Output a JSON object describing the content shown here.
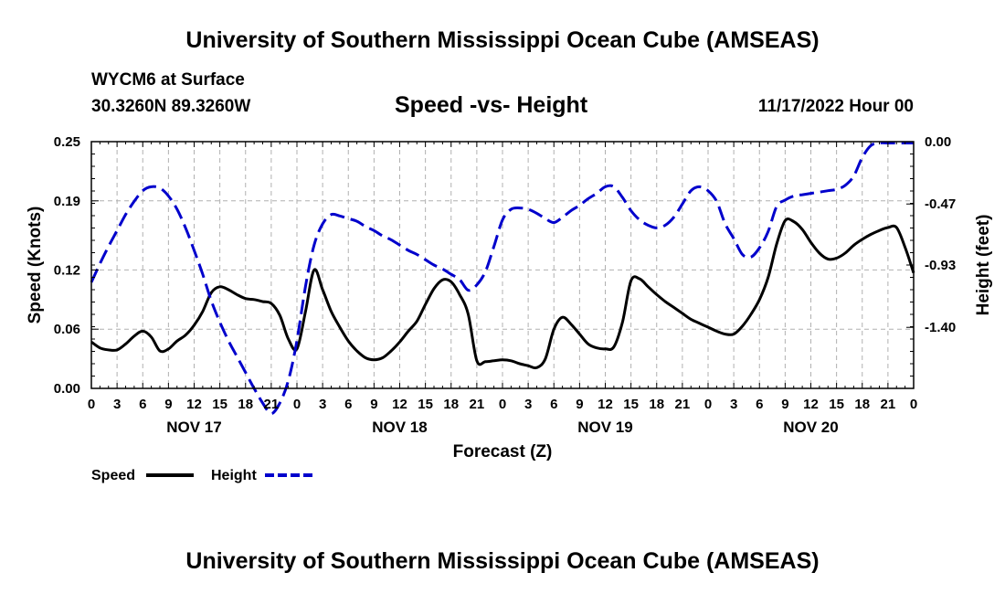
{
  "page": {
    "title": "University of Southern Mississippi Ocean Cube (AMSEAS)",
    "station": "WYCM6 at Surface",
    "coords": "30.3260N  89.3260W",
    "datetime": "11/17/2022 Hour 00",
    "footer_title": "University of Southern Mississippi Ocean Cube (AMSEAS)"
  },
  "chart_data": {
    "type": "line",
    "title": "Speed -vs- Height",
    "xlabel": "Forecast (Z)",
    "ylabel_left": "Speed (Knots)",
    "ylabel_right": "Height (feet)",
    "x_range_hours": [
      0,
      96
    ],
    "x_tick_hours": [
      0,
      3,
      6,
      9,
      12,
      15,
      18,
      21,
      24,
      27,
      30,
      33,
      36,
      39,
      42,
      45,
      48,
      51,
      54,
      57,
      60,
      63,
      66,
      69,
      72,
      75,
      78,
      81,
      84,
      87,
      90,
      93,
      96
    ],
    "x_tick_labels": [
      "0",
      "3",
      "6",
      "9",
      "12",
      "15",
      "18",
      "21",
      "0",
      "3",
      "6",
      "9",
      "12",
      "15",
      "18",
      "21",
      "0",
      "3",
      "6",
      "9",
      "12",
      "15",
      "18",
      "21",
      "0",
      "3",
      "6",
      "9",
      "12",
      "15",
      "18",
      "21",
      "0"
    ],
    "day_labels": [
      {
        "label": "NOV 17",
        "hour": 12
      },
      {
        "label": "NOV 18",
        "hour": 36
      },
      {
        "label": "NOV 19",
        "hour": 60
      },
      {
        "label": "NOV 20",
        "hour": 84
      }
    ],
    "left_axis": {
      "range": [
        0,
        0.25
      ],
      "ticks": [
        0,
        0.06,
        0.12,
        0.19,
        0.25
      ],
      "tick_labels": [
        "0.00",
        "0.06",
        "0.12",
        "0.19",
        "0.25"
      ]
    },
    "right_axis": {
      "range": [
        -1.86,
        0
      ],
      "ticks": [
        0,
        -0.47,
        -0.93,
        -1.4
      ],
      "tick_labels": [
        "0.00",
        "-0.47",
        "-0.93",
        "-1.40"
      ]
    },
    "grid": true,
    "legend": [
      "Speed",
      "Height"
    ],
    "series": [
      {
        "name": "Speed",
        "axis": "left",
        "color": "#000000",
        "dash": "solid",
        "x": [
          0,
          1,
          2,
          3,
          4,
          5,
          6,
          7,
          8,
          9,
          10,
          11,
          12,
          13,
          14,
          15,
          16,
          17,
          18,
          19,
          20,
          21,
          22,
          23,
          24,
          25,
          26,
          27,
          28,
          29,
          30,
          31,
          32,
          33,
          34,
          35,
          36,
          37,
          38,
          39,
          40,
          41,
          42,
          43,
          44,
          45,
          46,
          47,
          48,
          49,
          50,
          51,
          52,
          53,
          54,
          55,
          56,
          57,
          58,
          59,
          60,
          61,
          62,
          63,
          64,
          65,
          66,
          67,
          68,
          69,
          70,
          71,
          72,
          73,
          74,
          75,
          76,
          77,
          78,
          79,
          80,
          81,
          82,
          83,
          84,
          85,
          86,
          87,
          88,
          89,
          90,
          91,
          92,
          93,
          94,
          95,
          96
        ],
        "values": [
          0.047,
          0.041,
          0.039,
          0.039,
          0.045,
          0.053,
          0.058,
          0.052,
          0.038,
          0.04,
          0.048,
          0.054,
          0.064,
          0.078,
          0.097,
          0.103,
          0.1,
          0.095,
          0.091,
          0.09,
          0.088,
          0.086,
          0.074,
          0.05,
          0.04,
          0.078,
          0.12,
          0.1,
          0.078,
          0.062,
          0.048,
          0.038,
          0.031,
          0.029,
          0.031,
          0.038,
          0.047,
          0.058,
          0.068,
          0.085,
          0.101,
          0.11,
          0.108,
          0.095,
          0.075,
          0.028,
          0.027,
          0.028,
          0.029,
          0.028,
          0.025,
          0.023,
          0.021,
          0.03,
          0.06,
          0.072,
          0.065,
          0.055,
          0.045,
          0.041,
          0.04,
          0.042,
          0.067,
          0.109,
          0.111,
          0.103,
          0.095,
          0.088,
          0.082,
          0.076,
          0.07,
          0.066,
          0.062,
          0.058,
          0.055,
          0.055,
          0.063,
          0.075,
          0.09,
          0.112,
          0.146,
          0.17,
          0.169,
          0.161,
          0.148,
          0.137,
          0.131,
          0.132,
          0.137,
          0.145,
          0.151,
          0.156,
          0.16,
          0.163,
          0.163,
          0.143,
          0.117
        ]
      },
      {
        "name": "Height",
        "axis": "right",
        "color": "#0000cc",
        "dash": "dashed",
        "x": [
          0,
          1,
          2,
          3,
          4,
          5,
          6,
          7,
          8,
          9,
          10,
          11,
          12,
          13,
          14,
          15,
          16,
          17,
          18,
          19,
          20,
          21,
          22,
          23,
          24,
          25,
          26,
          27,
          28,
          29,
          30,
          31,
          32,
          33,
          34,
          35,
          36,
          37,
          38,
          39,
          40,
          41,
          42,
          43,
          44,
          45,
          46,
          47,
          48,
          49,
          50,
          51,
          52,
          53,
          54,
          55,
          56,
          57,
          58,
          59,
          60,
          61,
          62,
          63,
          64,
          65,
          66,
          67,
          68,
          69,
          70,
          71,
          72,
          73,
          74,
          75,
          76,
          77,
          78,
          79,
          80,
          81,
          82,
          83,
          84,
          85,
          86,
          87,
          88,
          89,
          90,
          91,
          92,
          93,
          94,
          95,
          96
        ],
        "values": [
          -1.06,
          -0.92,
          -0.79,
          -0.67,
          -0.55,
          -0.45,
          -0.37,
          -0.34,
          -0.35,
          -0.41,
          -0.51,
          -0.65,
          -0.82,
          -1.0,
          -1.2,
          -1.36,
          -1.5,
          -1.62,
          -1.74,
          -1.86,
          -1.97,
          -2.05,
          -1.97,
          -1.8,
          -1.5,
          -1.09,
          -0.78,
          -0.62,
          -0.55,
          -0.56,
          -0.58,
          -0.6,
          -0.64,
          -0.67,
          -0.71,
          -0.74,
          -0.78,
          -0.82,
          -0.85,
          -0.89,
          -0.93,
          -0.96,
          -1.0,
          -1.04,
          -1.12,
          -1.08,
          -0.98,
          -0.79,
          -0.59,
          -0.51,
          -0.5,
          -0.51,
          -0.54,
          -0.58,
          -0.61,
          -0.57,
          -0.52,
          -0.48,
          -0.43,
          -0.39,
          -0.34,
          -0.34,
          -0.42,
          -0.52,
          -0.59,
          -0.63,
          -0.65,
          -0.63,
          -0.57,
          -0.47,
          -0.37,
          -0.34,
          -0.37,
          -0.45,
          -0.62,
          -0.73,
          -0.85,
          -0.87,
          -0.8,
          -0.68,
          -0.49,
          -0.44,
          -0.41,
          -0.4,
          -0.39,
          -0.38,
          -0.37,
          -0.36,
          -0.33,
          -0.26,
          -0.12,
          -0.03,
          -0.01,
          -0.01,
          -0.01,
          -0.01,
          -0.01
        ]
      }
    ]
  }
}
